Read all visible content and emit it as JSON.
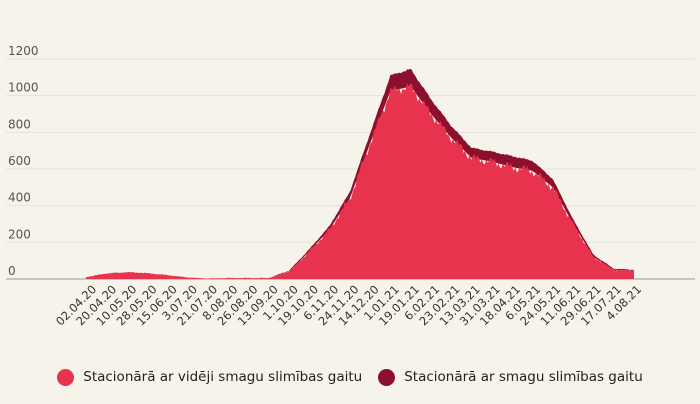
{
  "chart_data": {
    "type": "area",
    "stacked": true,
    "x_tick_labels": [
      "02.04.20",
      "20.04.20",
      "10.05.20",
      "28.05.20",
      "15.06.20",
      "3.07.20",
      "21.07.20",
      "8.08.20",
      "26.08.20",
      "13.09.20",
      "1.10.20",
      "19.10.20",
      "6.11.20",
      "24.11.20",
      "14.12.20",
      "1.01.21",
      "19.01.21",
      "6.02.21",
      "23.02.21",
      "13.03.21",
      "31.03.21",
      "18.04.21",
      "6.05.21",
      "24.05.21",
      "11.06.21",
      "29.06.21",
      "17.07.21",
      "4.08.21"
    ],
    "ylim": [
      0,
      1200
    ],
    "yticks": [
      0,
      200,
      400,
      600,
      800,
      1000,
      1200
    ],
    "grid": "horizontal",
    "legend_position": "bottom",
    "series": [
      {
        "name": "Stacionārā ar vidēji smagu slimības gaitu",
        "color": "#e8334f",
        "values": [
          10,
          30,
          37,
          32,
          21,
          8,
          2,
          5,
          5,
          5,
          40,
          150,
          270,
          440,
          740,
          1025,
          1050,
          900,
          770,
          660,
          640,
          610,
          590,
          500,
          300,
          120,
          50,
          45
        ]
      },
      {
        "name": "Stacionārā ar smagu slimības gaitu",
        "color": "#8d0f2e",
        "values": [
          0,
          0,
          0,
          0,
          0,
          0,
          0,
          0,
          0,
          0,
          5,
          12,
          20,
          35,
          55,
          85,
          95,
          80,
          65,
          55,
          55,
          60,
          55,
          45,
          25,
          12,
          6,
          5
        ]
      }
    ]
  }
}
